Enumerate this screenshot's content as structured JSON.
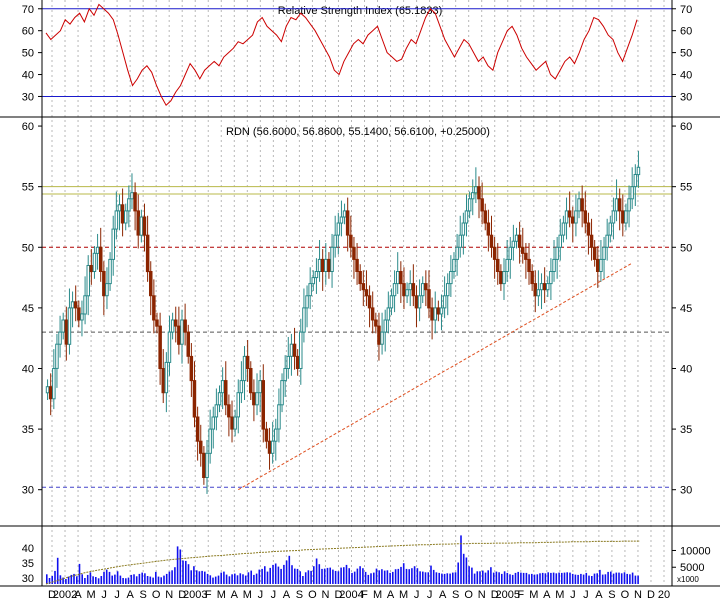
{
  "chart_data": [
    {
      "type": "line",
      "title": "Relative Strength Index (65.1833)",
      "ylim": [
        22,
        74
      ],
      "yticks": [
        30,
        40,
        50,
        60,
        70
      ],
      "reference_lines": [
        30,
        70
      ],
      "series": [
        {
          "color": "#cc0000",
          "values": [
            59,
            56,
            58,
            60,
            65,
            63,
            66,
            68,
            64,
            70,
            67,
            72,
            70,
            68,
            65,
            58,
            50,
            42,
            35,
            38,
            42,
            44,
            41,
            35,
            30,
            26,
            28,
            32,
            35,
            40,
            45,
            42,
            38,
            42,
            44,
            46,
            44,
            48,
            50,
            52,
            55,
            54,
            56,
            58,
            64,
            66,
            62,
            60,
            58,
            55,
            62,
            66,
            65,
            68,
            66,
            63,
            60,
            56,
            52,
            48,
            42,
            40,
            46,
            50,
            54,
            56,
            54,
            58,
            60,
            62,
            56,
            50,
            48,
            46,
            47,
            52,
            56,
            54,
            60,
            66,
            70,
            68,
            62,
            56,
            52,
            48,
            52,
            56,
            54,
            50,
            46,
            48,
            44,
            42,
            50,
            55,
            60,
            62,
            58,
            52,
            48,
            45,
            42,
            44,
            46,
            40,
            38,
            42,
            46,
            48,
            45,
            50,
            56,
            60,
            66,
            65,
            62,
            58,
            56,
            50,
            46,
            52,
            58,
            65
          ]
        }
      ]
    },
    {
      "type": "candlestick",
      "title": "RDN (56.6000, 56.8600, 55.1400, 56.6100, +0.25000)",
      "ylim": [
        27.5,
        60.5
      ],
      "yticks": [
        30,
        35,
        40,
        45,
        50,
        55,
        60
      ],
      "horizontal_lines": [
        {
          "value": 55.0,
          "color": "#b8b84a",
          "style": "solid"
        },
        {
          "value": 54.4,
          "color": "#b8b84a",
          "style": "solid"
        },
        {
          "value": 50.0,
          "color": "#b00000",
          "style": "dashed"
        },
        {
          "value": 43.0,
          "color": "#555555",
          "style": "dashed"
        },
        {
          "value": 30.2,
          "color": "#4444cc",
          "style": "dashed"
        }
      ],
      "trendline": {
        "from_week": 72,
        "from_value": 30.0,
        "to_week": 220,
        "to_value": 48.7,
        "color": "#e05020"
      },
      "closes": [
        38.5,
        37.5,
        40,
        42,
        43,
        44,
        42,
        45,
        45.5,
        45,
        44,
        44.5,
        46,
        48.5,
        48,
        49.5,
        50,
        48,
        46,
        47,
        49,
        51.5,
        53,
        53.5,
        52,
        53,
        54,
        54.5,
        53,
        51,
        52.5,
        51,
        48,
        46,
        44,
        43.5,
        40,
        38,
        40.5,
        43,
        44,
        43.5,
        42,
        44,
        43,
        41,
        39,
        36,
        34,
        33,
        31,
        33,
        35,
        36,
        37,
        38,
        39,
        37,
        36,
        35,
        36,
        38,
        39,
        41,
        40,
        38,
        37,
        38,
        39,
        35,
        34,
        33,
        34,
        35,
        37,
        39,
        40,
        41,
        42,
        41,
        40,
        43,
        45,
        46,
        47,
        47.5,
        48,
        49,
        48,
        49,
        48,
        50,
        51,
        52,
        52.5,
        53,
        51,
        50,
        49,
        48,
        47,
        46.5,
        46,
        45,
        44,
        43.5,
        42,
        43,
        44,
        45,
        46,
        47,
        48,
        47,
        46,
        46.5,
        47,
        46,
        45,
        46,
        47,
        46.5,
        45,
        44,
        45,
        44.5,
        45,
        46,
        47,
        48,
        49,
        50,
        51,
        52,
        53,
        54,
        54.5,
        55,
        54,
        53,
        52,
        51,
        50,
        49,
        48,
        47,
        48,
        49,
        50,
        50.5,
        51,
        50,
        49.5,
        49,
        48,
        47,
        46,
        46.5,
        47,
        46.5,
        47,
        48,
        49,
        50,
        51,
        52,
        53,
        52.5,
        52,
        53,
        54,
        53,
        52,
        51,
        50,
        49,
        48,
        49,
        50,
        51,
        52,
        53,
        54,
        53,
        52,
        53,
        54,
        55,
        56,
        56.6
      ]
    },
    {
      "type": "bar",
      "title": "",
      "ylabel": "x1000",
      "ylim": [
        0,
        17000
      ],
      "yticks_right": [
        5000,
        10000
      ],
      "left_tick_labels": [
        "30",
        "35",
        "40"
      ],
      "values": [
        2900,
        1800,
        2400,
        3900,
        7800,
        2600,
        1900,
        1500,
        2200,
        2700,
        3000,
        2300,
        6000,
        2900,
        1800,
        2700,
        3500,
        2300,
        2100,
        1700,
        2400,
        3600,
        4300,
        3600,
        2500,
        2800,
        3800,
        2500,
        1800,
        1700,
        1900,
        2700,
        2900,
        2300,
        3000,
        3400,
        3200,
        2400,
        2200,
        1900,
        3600,
        2200,
        2000,
        2500,
        3000,
        3700,
        4100,
        5000,
        11200,
        10300,
        7000,
        6900,
        5900,
        4100,
        5300,
        4100,
        3800,
        3900,
        3700,
        3000,
        2600,
        1900,
        2200,
        2500,
        3400,
        3700,
        2800,
        2300,
        2900,
        3100,
        2600,
        3200,
        2900,
        2500,
        3500,
        4000,
        2700,
        3100,
        4300,
        4500,
        5300,
        3700,
        4800,
        5700,
        6100,
        5200,
        4500,
        5700,
        7000,
        8400,
        5600,
        4600,
        4500,
        3800,
        2400,
        3500,
        4100,
        3900,
        5300,
        7600,
        5900,
        4500,
        4600,
        4800,
        4900,
        4300,
        3900,
        3800,
        4900,
        5000,
        5700,
        4700,
        3300,
        3700,
        4600,
        5300,
        4700,
        3600,
        2700,
        3200,
        3400,
        4600,
        4100,
        4400,
        4000,
        4100,
        3300,
        3600,
        4400,
        4500,
        5100,
        6200,
        4500,
        4400,
        4700,
        5300,
        4700,
        3800,
        3700,
        3500,
        3500,
        5500,
        4200,
        3500,
        3300,
        3100,
        3000,
        3200,
        3100,
        3400,
        3500,
        6400,
        14500,
        9000,
        7900,
        5300,
        4900,
        3100,
        3800,
        3800,
        4000,
        3400,
        4100,
        5000,
        3400,
        3700,
        3500,
        3000,
        3800,
        3300,
        2900,
        2700,
        3300,
        3600,
        3400,
        3300,
        3300,
        2900,
        3000,
        2800,
        2900,
        3200,
        3300,
        3200,
        3500,
        3300,
        3400,
        3200,
        3400,
        3300,
        3400,
        3500,
        3400,
        3000,
        2800,
        2700,
        3000,
        2800,
        3300,
        2500,
        2400,
        3100,
        3200,
        4200,
        2800,
        2900,
        3600,
        3700,
        3100,
        3400,
        3400,
        3200,
        3500,
        3000,
        2900,
        3400,
        2500,
        2500
      ],
      "moving_average": [
        0,
        700,
        1400,
        2100,
        2700,
        3300,
        3800,
        4200,
        4600,
        5000,
        5400,
        5700,
        6000,
        6300,
        6600,
        6900,
        7200,
        7400,
        7600,
        7800,
        8000,
        8200,
        8400,
        8500,
        8700,
        8900,
        9100,
        9200,
        9400,
        9500,
        9700,
        9800,
        9900,
        10000,
        10200,
        10300,
        10400,
        10500,
        10600,
        10700,
        10800,
        10900,
        11000,
        11100,
        11200,
        11300,
        11400,
        11500,
        11600,
        11700,
        11700,
        11800,
        11900,
        11900,
        12000,
        12000,
        12100,
        12100,
        12100,
        12200,
        12200,
        12200,
        12300,
        12300,
        12300,
        12400,
        12400,
        12500,
        12500,
        12600,
        12600,
        12600,
        12700,
        12700,
        12700,
        12700,
        12800,
        12800,
        12800
      ]
    }
  ],
  "x_axis": {
    "labels": [
      "D",
      "2002",
      "A",
      "M",
      "J",
      "J",
      "A",
      "S",
      "O",
      "N",
      "D",
      "2003",
      "F",
      "M",
      "A",
      "M",
      "J",
      "J",
      "A",
      "S",
      "O",
      "N",
      "D",
      "2004",
      "F",
      "M",
      "A",
      "M",
      "J",
      "J",
      "A",
      "S",
      "O",
      "N",
      "D",
      "2005",
      "F",
      "M",
      "A",
      "M",
      "J",
      "J",
      "A",
      "S",
      "O",
      "N",
      "D",
      "20"
    ]
  }
}
